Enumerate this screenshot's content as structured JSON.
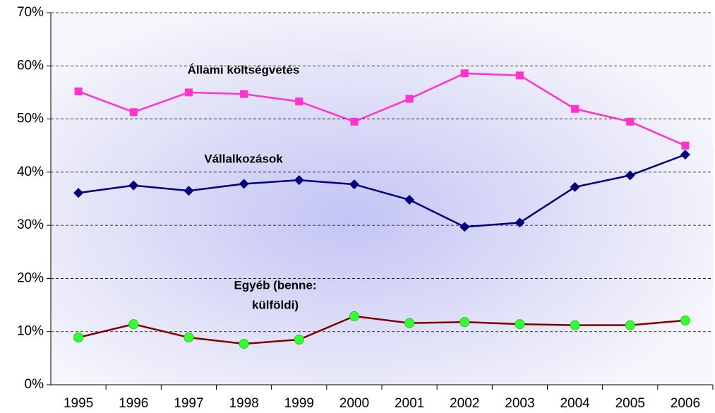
{
  "chart_data": {
    "type": "line",
    "categories": [
      "1995",
      "1996",
      "1997",
      "1998",
      "1999",
      "2000",
      "2001",
      "2002",
      "2003",
      "2004",
      "2005",
      "2006"
    ],
    "series": [
      {
        "color": "#ff33cc",
        "marker": "square",
        "marker_color": "#ff33cc",
        "values": [
          55.2,
          51.3,
          55.0,
          54.7,
          53.3,
          49.5,
          53.8,
          58.6,
          58.2,
          51.9,
          49.5,
          45.0
        ]
      },
      {
        "color": "#000080",
        "marker": "diamond",
        "marker_color": "#000080",
        "values": [
          36.1,
          37.5,
          36.5,
          37.8,
          38.5,
          37.7,
          34.8,
          29.7,
          30.5,
          37.2,
          39.4,
          43.3
        ]
      },
      {
        "color": "#800000",
        "marker": "circle",
        "marker_color": "#33ff33",
        "values": [
          8.9,
          11.4,
          8.9,
          7.7,
          8.5,
          12.9,
          11.6,
          11.8,
          11.4,
          11.2,
          11.2,
          12.1
        ]
      }
    ],
    "annotations": [
      "Állami költségvetés",
      "Vállalkozások",
      "Egyéb (benne:",
      "külföldi)"
    ],
    "ylim": [
      0,
      70
    ],
    "yticks": [
      {
        "value": 0,
        "label": "0%"
      },
      {
        "value": 10,
        "label": "10%"
      },
      {
        "value": 20,
        "label": "20%"
      },
      {
        "value": 30,
        "label": "30%"
      },
      {
        "value": 40,
        "label": "40%"
      },
      {
        "value": 50,
        "label": "50%"
      },
      {
        "value": 60,
        "label": "60%"
      },
      {
        "value": 70,
        "label": "70%"
      }
    ],
    "grid": true
  }
}
